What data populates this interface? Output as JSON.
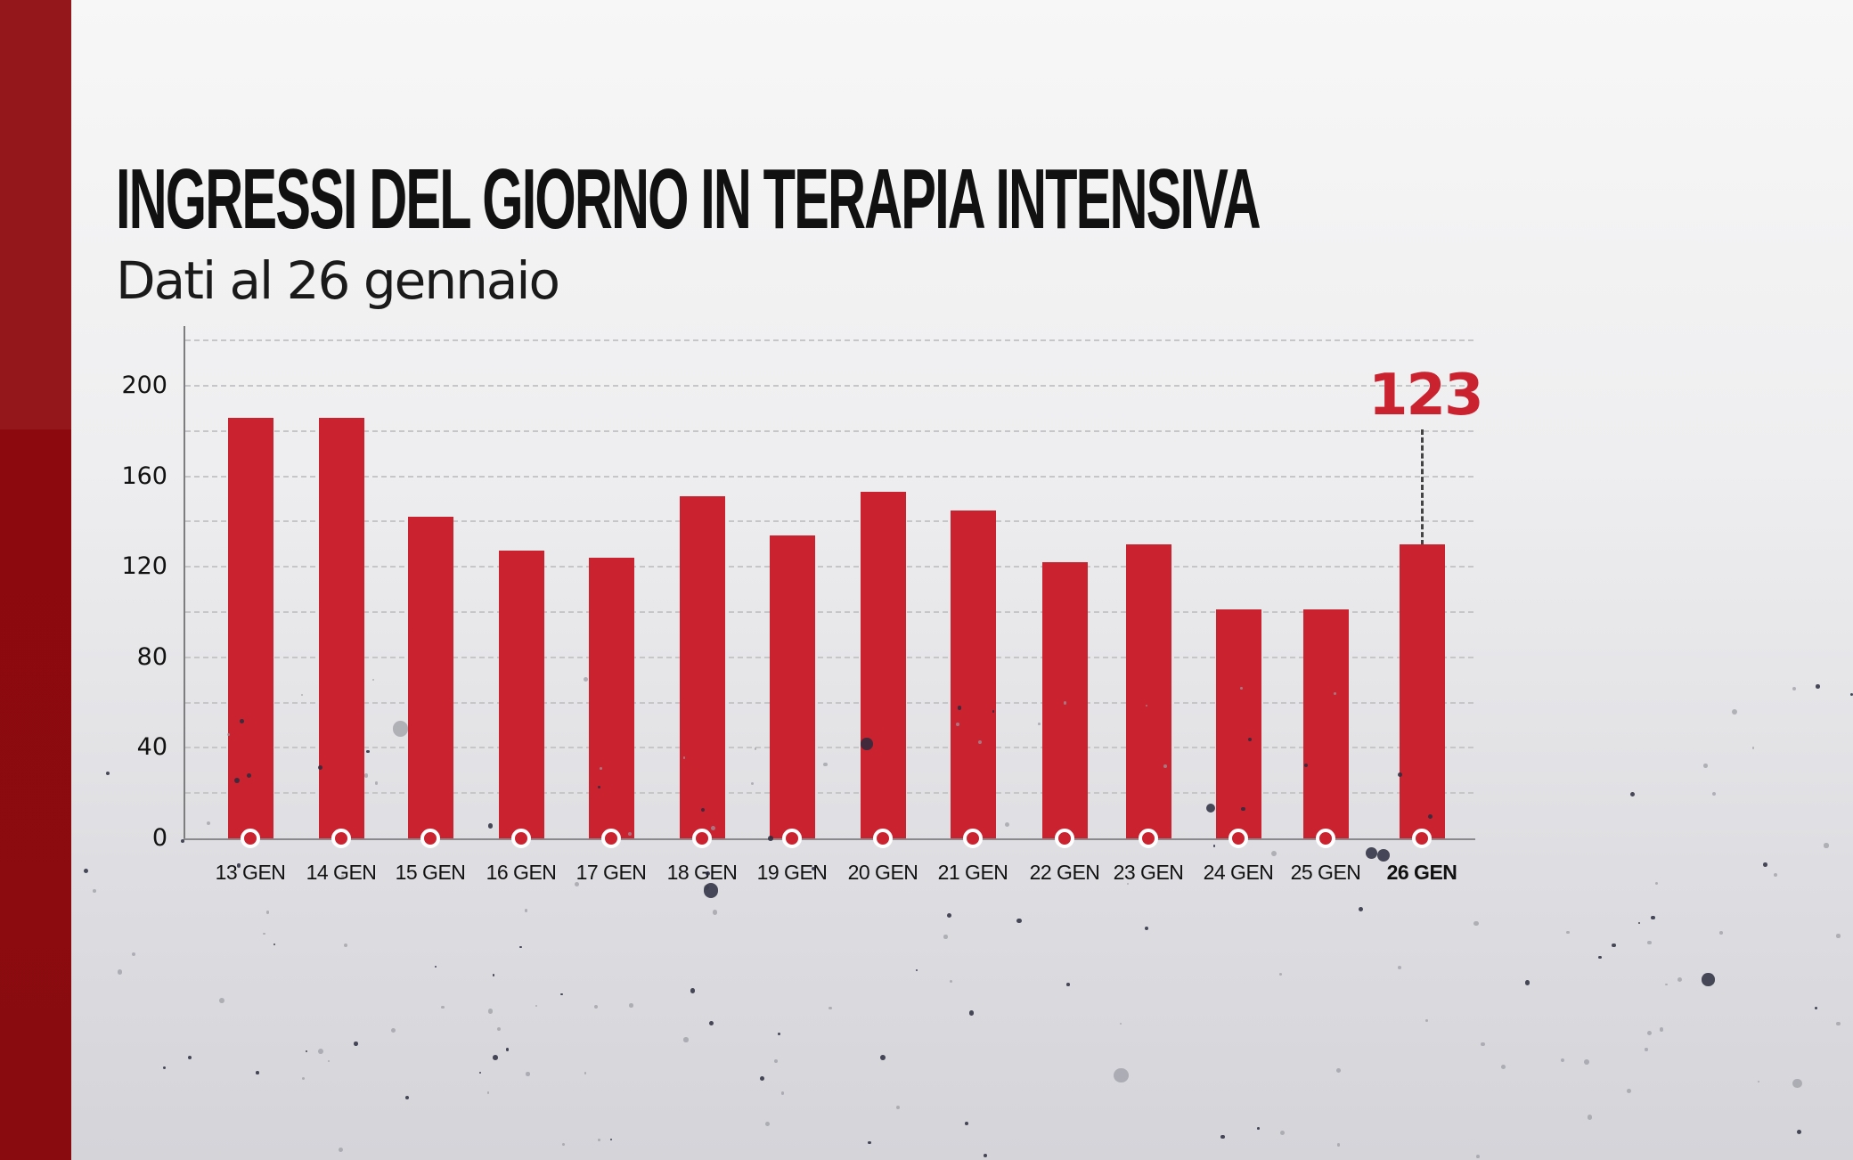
{
  "header": {
    "title": "INGRESSI DEL GIORNO IN TERAPIA INTENSIVA",
    "subtitle": "Dati al 26 gennaio"
  },
  "colors": {
    "bar": "#cb222f",
    "accent_strip": "#8e0a0e",
    "annotation": "#cb222f"
  },
  "annotation": {
    "label": "123",
    "target_category": "26 GEN"
  },
  "chart_data": {
    "type": "bar",
    "title": "INGRESSI DEL GIORNO IN TERAPIA INTENSIVA",
    "subtitle": "Dati al 26 gennaio",
    "xlabel": "",
    "ylabel": "",
    "categories": [
      "13 GEN",
      "14 GEN",
      "15 GEN",
      "16 GEN",
      "17 GEN",
      "18 GEN",
      "19 GEN",
      "20 GEN",
      "21 GEN",
      "22 GEN",
      "23 GEN",
      "24 GEN",
      "25 GEN",
      "26 GEN"
    ],
    "values": [
      186,
      186,
      142,
      127,
      124,
      151,
      134,
      153,
      145,
      122,
      130,
      101,
      101,
      123
    ],
    "ylim": [
      0,
      220
    ],
    "yticks": [
      0,
      40,
      80,
      120,
      160,
      200
    ],
    "grid": true,
    "grid_step": 20,
    "legend": null,
    "highlight": {
      "category": "26 GEN",
      "label": "123"
    }
  }
}
